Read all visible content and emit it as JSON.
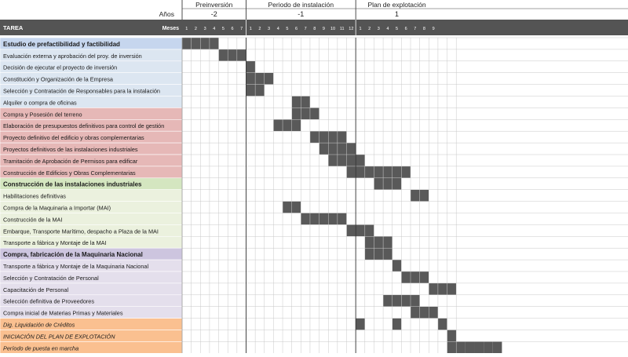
{
  "chart_data": {
    "type": "table",
    "years_label": "Años",
    "months_label": "Meses",
    "task_header": "TAREA",
    "periods": [
      {
        "name": "Preinversión",
        "year": "-2",
        "months": [
          "1",
          "2",
          "3",
          "4",
          "5",
          "6",
          "7"
        ]
      },
      {
        "name": "Periodo de instalación",
        "year": "-1",
        "months": [
          "1",
          "2",
          "3",
          "4",
          "5",
          "6",
          "7",
          "8",
          "9",
          "10",
          "11",
          "12"
        ]
      },
      {
        "name": "Plan de explotación",
        "year": "1",
        "months": [
          "1",
          "2",
          "3",
          "4",
          "5",
          "6",
          "7",
          "8",
          "9"
        ]
      }
    ],
    "colors": {
      "header": "#545454",
      "bar": "#595959",
      "grid": "#c8c8c8",
      "section_blue": "#c6d6ee",
      "row_blue": "#dce6f1",
      "row_red": "#e6b8b7",
      "section_green": "#d4e6c0",
      "row_green": "#ebf1de",
      "section_purple": "#cdc5df",
      "row_purple": "#e4dfec",
      "row_orange": "#fac090"
    },
    "tasks": [
      {
        "label": "Estudio de prefactibilidad y factibilidad",
        "style": "section",
        "fill": "section_blue",
        "cells": [
          1,
          2,
          3,
          4
        ]
      },
      {
        "label": "Evaluación externa y aprobación del proy. de inversión",
        "style": "normal",
        "fill": "row_blue",
        "cells": [
          5,
          6,
          7
        ]
      },
      {
        "label": "Decisión de ejecutar el proyecto de inversión",
        "style": "normal",
        "fill": "row_blue",
        "cells": [
          8
        ]
      },
      {
        "label": "Constitución y Organización de la Empresa",
        "style": "normal",
        "fill": "row_blue",
        "cells": [
          8,
          9,
          10
        ]
      },
      {
        "label": "Selección y Contratación de Responsables para la instalación",
        "style": "normal",
        "fill": "row_blue",
        "cells": [
          8,
          9
        ]
      },
      {
        "label": "Alquiler o compra de oficinas",
        "style": "normal",
        "fill": "row_blue",
        "cells": [
          13,
          14
        ]
      },
      {
        "label": "Compra y Posesión del terreno",
        "style": "normal",
        "fill": "row_red",
        "cells": [
          13,
          14,
          15
        ]
      },
      {
        "label": "Elaboración de presupuestos definitivos para control de gestión",
        "style": "normal",
        "fill": "row_red",
        "cells": [
          11,
          12,
          13
        ]
      },
      {
        "label": "Proyecto definitivo del edificio y obras complementarias",
        "style": "normal",
        "fill": "row_red",
        "cells": [
          15,
          16,
          17,
          18
        ]
      },
      {
        "label": "Proyectos definitivos de las instalaciones industriales",
        "style": "normal",
        "fill": "row_red",
        "cells": [
          16,
          17,
          18,
          19
        ]
      },
      {
        "label": "Tramitación de Aprobación de Permisos para edificar",
        "style": "normal",
        "fill": "row_red",
        "cells": [
          17,
          18,
          19,
          20
        ]
      },
      {
        "label": "Construcción de Edificios y Obras Complementarias",
        "style": "normal",
        "fill": "row_red",
        "cells": [
          19,
          20,
          21,
          22,
          23,
          24,
          25
        ]
      },
      {
        "label": "Construcción de las instalaciones industriales",
        "style": "section",
        "fill": "section_green",
        "cells": [
          22,
          23,
          24
        ]
      },
      {
        "label": "Habilitaciones definitivas",
        "style": "normal",
        "fill": "row_green",
        "cells": [
          26,
          27
        ]
      },
      {
        "label": "Compra de la Maquinaria a Importar (MAI)",
        "style": "normal",
        "fill": "row_green",
        "cells": [
          12,
          13
        ]
      },
      {
        "label": "Construcción de la MAI",
        "style": "normal",
        "fill": "row_green",
        "cells": [
          14,
          15,
          16,
          17,
          18
        ]
      },
      {
        "label": "Embarque, Transporte Marítimo, despacho a Plaza de la MAI",
        "style": "normal",
        "fill": "row_green",
        "cells": [
          19,
          20,
          21
        ]
      },
      {
        "label": "Transporte a fábrica y Montaje de la MAI",
        "style": "normal",
        "fill": "row_green",
        "cells": [
          21,
          22,
          23
        ]
      },
      {
        "label": "Compra, fabricación de la Maquinaria Nacional",
        "style": "section",
        "fill": "section_purple",
        "cells": [
          21,
          22,
          23
        ]
      },
      {
        "label": "Transporte a fábrica y Montaje de la Maquinaria Nacional",
        "style": "normal",
        "fill": "row_purple",
        "cells": [
          24
        ]
      },
      {
        "label": "Selección y Contratación de Personal",
        "style": "normal",
        "fill": "row_purple",
        "cells": [
          25,
          26,
          27
        ]
      },
      {
        "label": "Capacitación de Personal",
        "style": "normal",
        "fill": "row_purple",
        "cells": [
          28,
          29,
          30
        ]
      },
      {
        "label": "Selección definitiva de Proveedores",
        "style": "normal",
        "fill": "row_purple",
        "cells": [
          23,
          24,
          25,
          26
        ]
      },
      {
        "label": "Compra inicial de Materias Primas y Materiales",
        "style": "normal",
        "fill": "row_purple",
        "cells": [
          26,
          27,
          28
        ]
      },
      {
        "label": "Dig. Liquidación de Créditos",
        "style": "italic",
        "fill": "row_orange",
        "cells": [
          20,
          24,
          29
        ]
      },
      {
        "label": "INICIACIÓN DEL PLAN DE EXPLOTACIÓN",
        "style": "italic",
        "fill": "row_orange",
        "cells": [
          30
        ]
      },
      {
        "label": "Período de puesta en marcha",
        "style": "italic",
        "fill": "row_orange",
        "cells": [
          30,
          31,
          32,
          33,
          34,
          35
        ]
      }
    ]
  }
}
